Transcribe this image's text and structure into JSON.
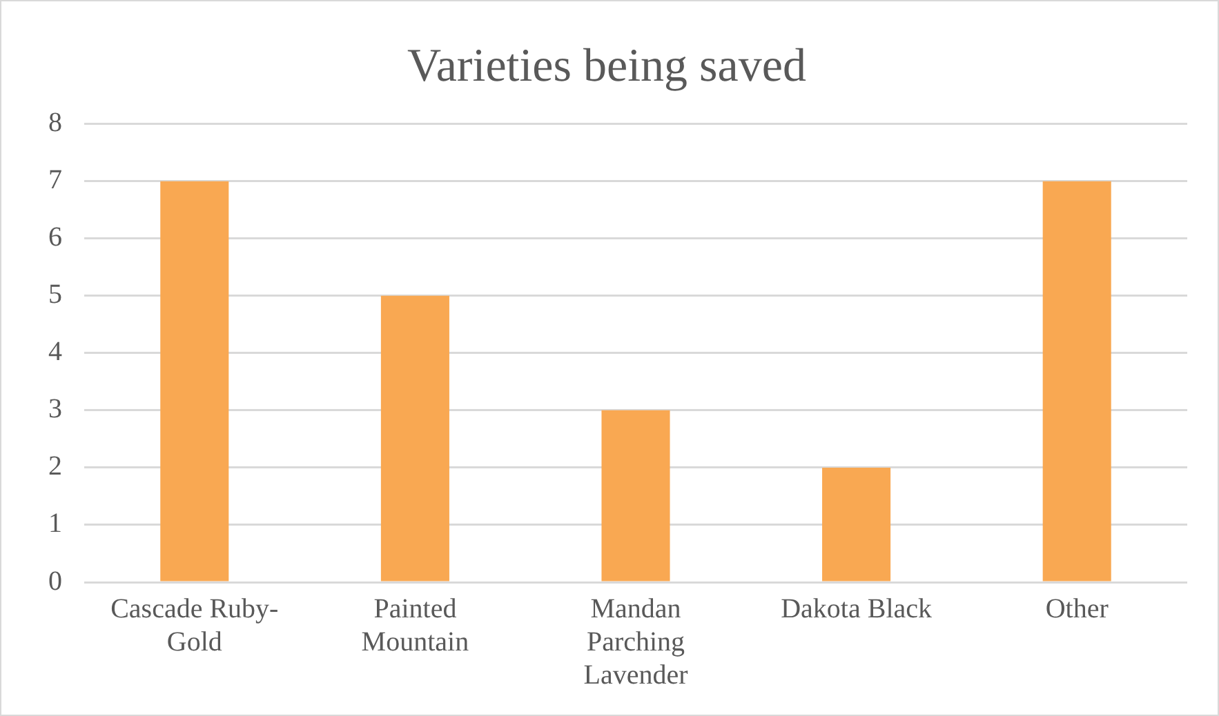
{
  "chart_data": {
    "type": "bar",
    "title": "Varieties being saved",
    "categories": [
      "Cascade Ruby-Gold",
      "Painted Mountain",
      "Mandan Parching Lavender",
      "Dakota Black",
      "Other"
    ],
    "values": [
      7,
      5,
      3,
      2,
      7
    ],
    "color": "#f9a852",
    "ylim": [
      0,
      8
    ],
    "yticks": [
      0,
      1,
      2,
      3,
      4,
      5,
      6,
      7,
      8
    ],
    "grid": "y",
    "legend": false
  }
}
